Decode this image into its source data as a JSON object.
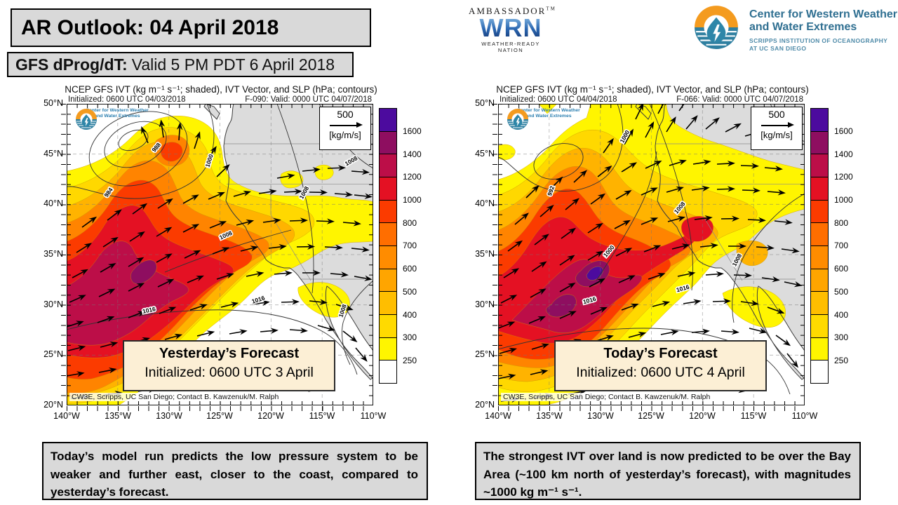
{
  "slide": {
    "title": "AR Outlook: 04 April 2018",
    "subtitle_bold": "GFS dProg/dT:",
    "subtitle_rest": "Valid 5 PM PDT 6 April 2018"
  },
  "logos": {
    "wrn": {
      "top": "AMBASSADOR",
      "tm": "TM",
      "acronym": "WRN",
      "bottom": "WEATHER-READY NATION"
    },
    "cw3e": {
      "line1": "Center for Western Weather",
      "line2": "and Water Extremes",
      "line3": "SCRIPPS INSTITUTION OF OCEANOGRAPHY",
      "line4": "AT UC SAN DIEGO",
      "accent_orange": "#f49b1f",
      "accent_teal": "#2e7fa0"
    }
  },
  "colorbar": {
    "unit": "kg m⁻¹ s⁻¹",
    "ticks": [
      "1600",
      "1400",
      "1200",
      "1000",
      "800",
      "700",
      "600",
      "500",
      "400",
      "300",
      "250"
    ],
    "colors": [
      "#4c0b9e",
      "#8e0e60",
      "#bc0e48",
      "#e41123",
      "#fb3b00",
      "#ff6e00",
      "#ff8c00",
      "#ffa500",
      "#ffbe00",
      "#ffda00",
      "#fff500",
      "#ffffff"
    ]
  },
  "maps": [
    {
      "title": "NCEP GFS IVT (kg m⁻¹ s⁻¹; shaded), IVT Vector, and SLP (hPa; contours)",
      "initialized": "Initialized: 0600 UTC 04/03/2018",
      "valid": "F-090: Valid: 0000 UTC 04/07/2018",
      "ref_value": "500",
      "ref_unit": "[kg/m/s]",
      "label_title": "Yesterday’s Forecast",
      "label_sub": "Initialized: 0600 UTC 3 April",
      "attribution": "CW3E, Scripps, UC San Diego; Contact B. Kawzenuk/M. Ralph",
      "lat_ticks": [
        "50°N",
        "45°N",
        "40°N",
        "35°N",
        "30°N",
        "25°N",
        "20°N"
      ],
      "lon_ticks": [
        "140°W",
        "135°W",
        "130°W",
        "125°W",
        "120°W",
        "115°W",
        "110°W"
      ],
      "slp": [
        "984",
        "988",
        "1000",
        "1008",
        "1008",
        "1008",
        "1016",
        "1016",
        "1008"
      ]
    },
    {
      "title": "NCEP GFS IVT (kg m⁻¹ s⁻¹; shaded), IVT Vector, and SLP (hPa; contours)",
      "initialized": "Initialized: 0600 UTC 04/04/2018",
      "valid": "F-066: Valid: 0000 UTC 04/07/2018",
      "ref_value": "500",
      "ref_unit": "[kg/m/s]",
      "label_title": "Today’s Forecast",
      "label_sub": "Initialized: 0600 UTC 4 April",
      "attribution": "CW3E, Scripps, UC San Diego; Contact B. Kawzenuk/M. Ralph",
      "lat_ticks": [
        "50°N",
        "45°N",
        "40°N",
        "35°N",
        "30°N",
        "25°N",
        "20°N"
      ],
      "lon_ticks": [
        "140°W",
        "135°W",
        "130°W",
        "125°W",
        "120°W",
        "115°W",
        "110°W"
      ],
      "slp": [
        "992",
        "1000",
        "1008",
        "1008",
        "1008",
        "1016",
        "1016",
        "1000"
      ]
    }
  ],
  "mini_logo": {
    "line1": "Center for Western Weather",
    "line2": "and Water Extremes"
  },
  "notes": {
    "left": "Today’s model run predicts the low pressure system to be weaker and further east, closer to the coast, compared to yesterday’s forecast.",
    "right": "The strongest IVT over land is now predicted to be over the Bay Area (~100 km north of yesterday’s forecast), with magnitudes ~1000 kg m⁻¹ s⁻¹."
  }
}
